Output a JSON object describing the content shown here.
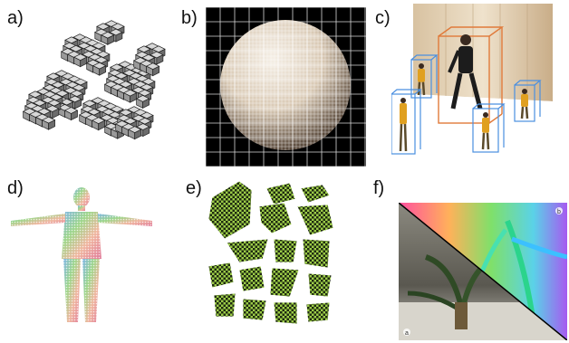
{
  "figure": {
    "panels": [
      {
        "id": "a",
        "label": "a)"
      },
      {
        "id": "b",
        "label": "b)"
      },
      {
        "id": "c",
        "label": "c)"
      },
      {
        "id": "d",
        "label": "d)"
      },
      {
        "id": "e",
        "label": "e)"
      },
      {
        "id": "f",
        "label": "f)",
        "corner_marks": [
          "b",
          "a"
        ]
      }
    ]
  }
}
